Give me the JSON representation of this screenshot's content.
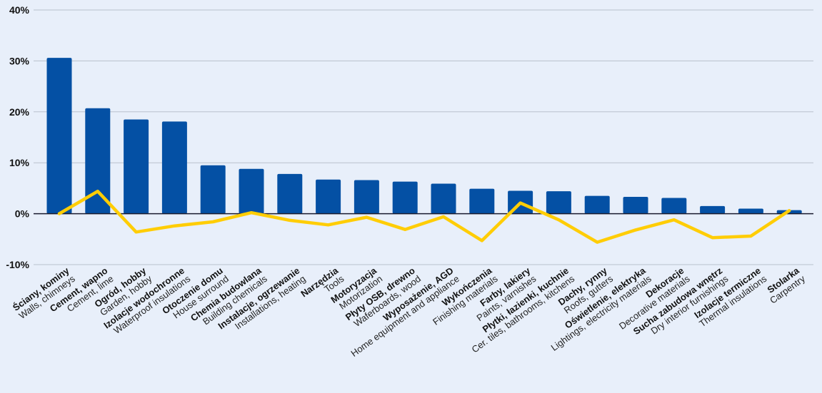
{
  "chart_data": {
    "type": "bar",
    "categories": [
      {
        "pl": "Ściany, kominy",
        "en": "Walls, chimneys"
      },
      {
        "pl": "Cement, wapno",
        "en": "Cement, lime"
      },
      {
        "pl": "Ogród, hobby",
        "en": "Garden, hobby"
      },
      {
        "pl": "Izolacje wodochronne",
        "en": "Waterproof insulations"
      },
      {
        "pl": "Otoczenie domu",
        "en": "House surround"
      },
      {
        "pl": "Chemia budowlana",
        "en": "Building chemicals"
      },
      {
        "pl": "Instalacje, ogrzewanie",
        "en": "Installations, heating"
      },
      {
        "pl": "Narzędzia",
        "en": "Tools"
      },
      {
        "pl": "Motoryzacja",
        "en": "Motorization"
      },
      {
        "pl": "Płyty OSB, drewno",
        "en": "Waferboards, wood"
      },
      {
        "pl": "Wyposażenie, AGD",
        "en": "Home equipment and appliance"
      },
      {
        "pl": "Wykończenia",
        "en": "Finishing materials"
      },
      {
        "pl": "Farby, lakiery",
        "en": "Paints, varnishes"
      },
      {
        "pl": "Płytki, łazienki, kuchnie",
        "en": "Cer. tiles, bathrooms, kitchens"
      },
      {
        "pl": "Dachy, rynny",
        "en": "Roofs, gutters"
      },
      {
        "pl": "Oświetlenie, elektryka",
        "en": "Lightings, electricity materials"
      },
      {
        "pl": "Dekoracje",
        "en": "Decorative materials"
      },
      {
        "pl": "Sucha zabudowa wnętrz",
        "en": "Dry interior furnishings"
      },
      {
        "pl": "Izolacje termiczne",
        "en": "Thermal insulations"
      },
      {
        "pl": "Stolarka",
        "en": "Carpentry"
      }
    ],
    "series": [
      {
        "type": "bar",
        "color": "#0450a4",
        "values": [
          30.6,
          20.7,
          18.5,
          18.1,
          9.5,
          8.8,
          7.8,
          6.7,
          6.6,
          6.3,
          5.9,
          4.9,
          4.5,
          4.4,
          3.5,
          3.3,
          3.1,
          1.5,
          1.0,
          0.7
        ]
      },
      {
        "type": "line",
        "color": "#ffcd05",
        "values": [
          0.0,
          4.4,
          -3.6,
          -2.4,
          -1.6,
          0.2,
          -1.3,
          -2.2,
          -0.7,
          -3.1,
          -0.6,
          -5.3,
          2.1,
          -1.2,
          -5.6,
          -3.2,
          -1.2,
          -4.7,
          -4.4,
          0.6
        ]
      }
    ],
    "yticks": [
      -10,
      0,
      10,
      20,
      30,
      40
    ],
    "ytick_labels": [
      "-10%",
      "0%",
      "10%",
      "20%",
      "30%",
      "40%"
    ],
    "ylim": [
      -10,
      40
    ],
    "grid": true,
    "title": "",
    "xlabel": "",
    "ylabel": ""
  }
}
